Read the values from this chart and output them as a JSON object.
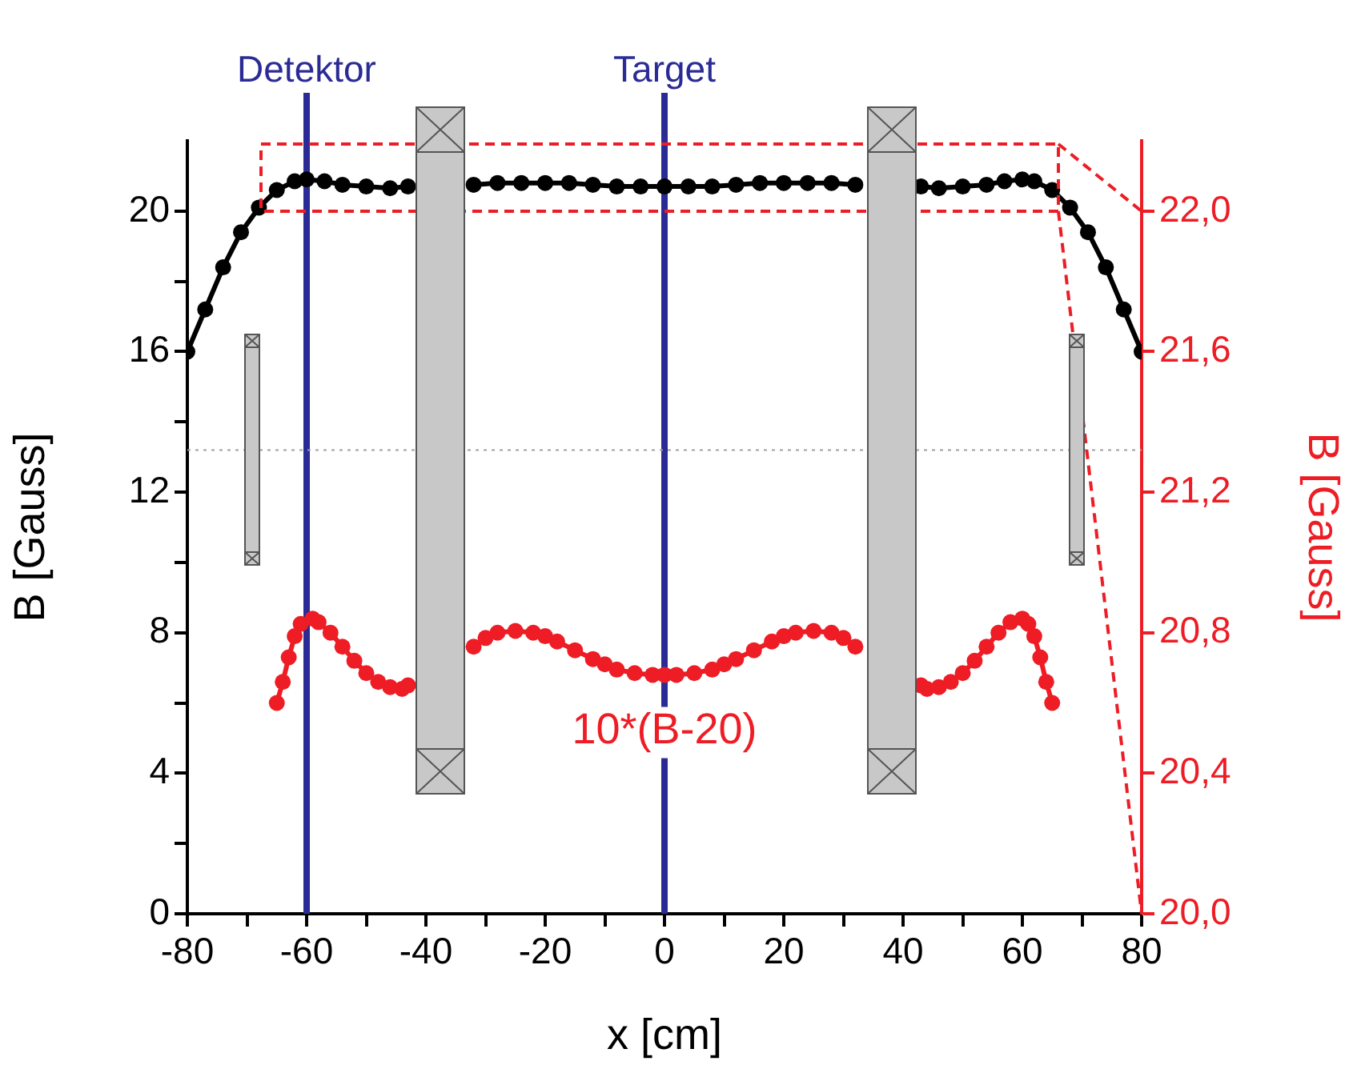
{
  "chart_data": {
    "type": "line",
    "xlabel": "x [cm]",
    "ylabel": "B [Gauss]",
    "y2label": "B [Gauss]",
    "xlim": [
      -80,
      80
    ],
    "xticks": [
      -80,
      {
        "value": -70,
        "label": null
      },
      -60,
      {
        "value": -50,
        "label": null
      },
      -40,
      {
        "value": -30,
        "label": null
      },
      -20,
      {
        "value": -10,
        "label": null
      },
      0,
      {
        "value": 10,
        "label": null
      },
      20,
      {
        "value": 30,
        "label": null
      },
      40,
      {
        "value": 50,
        "label": null
      },
      60,
      {
        "value": 70,
        "label": null
      },
      80
    ],
    "ylim": [
      0,
      22
    ],
    "yticks": [
      0,
      {
        "value": 2,
        "label": null
      },
      4,
      {
        "value": 6,
        "label": null
      },
      8,
      {
        "value": 10,
        "label": null
      },
      12,
      {
        "value": 14,
        "label": null
      },
      16,
      {
        "value": 18,
        "label": null
      },
      20
    ],
    "y2lim": [
      20,
      22.2
    ],
    "y2ticks": [
      {
        "value": 20,
        "label": "20,0"
      },
      {
        "value": 20.4,
        "label": "20,4"
      },
      {
        "value": 20.8,
        "label": "20,8"
      },
      {
        "value": 21.2,
        "label": "21,2"
      },
      {
        "value": 21.6,
        "label": "21,6"
      },
      {
        "value": 22,
        "label": "22,0"
      }
    ],
    "grid": false,
    "legend": false,
    "marker": "circle",
    "line_style": "solid",
    "ref_lines": [
      {
        "axis": "x",
        "value": -60,
        "label": "Detektor",
        "color": "#2b2b96",
        "line_style": "solid"
      },
      {
        "axis": "x",
        "value": 0,
        "label": "Target",
        "color": "#2b2b96",
        "line_style": "solid"
      },
      {
        "axis": "y",
        "value": 13.2,
        "label": null,
        "color": "#a0a0a0",
        "line_style": "dotted"
      }
    ],
    "series": [
      {
        "color": "#000000",
        "x": [
          -80,
          -77,
          -74,
          -71,
          -68,
          -65,
          -62,
          -60,
          -57,
          -54,
          -50,
          -46,
          -43,
          -38,
          -32,
          -28,
          -24,
          -20,
          -16,
          -12,
          -8,
          -4,
          0,
          4,
          8,
          12,
          16,
          20,
          24,
          28,
          32,
          38,
          43,
          46,
          50,
          54,
          57,
          60,
          62,
          65,
          68,
          71,
          74,
          77,
          80
        ],
        "values": [
          16.0,
          17.2,
          18.4,
          19.4,
          20.1,
          20.6,
          20.85,
          20.9,
          20.85,
          20.75,
          20.7,
          20.65,
          20.7,
          null,
          20.75,
          20.8,
          20.8,
          20.8,
          20.8,
          20.75,
          20.7,
          20.7,
          20.7,
          20.7,
          20.7,
          20.75,
          20.8,
          20.8,
          20.8,
          20.8,
          20.75,
          null,
          20.7,
          20.65,
          20.7,
          20.75,
          20.85,
          20.9,
          20.85,
          20.6,
          20.1,
          19.4,
          18.4,
          17.2,
          16.0
        ]
      },
      {
        "name": "10*(B-20)",
        "color": "#ee1c24",
        "x": [
          -65,
          -64,
          -63,
          -62,
          -61,
          -59,
          -58,
          -56,
          -54,
          -52,
          -50,
          -48,
          -46,
          -44,
          -43,
          -38,
          -32,
          -30,
          -28,
          -25,
          -22,
          -20,
          -18,
          -15,
          -12,
          -10,
          -8,
          -5,
          -2,
          0,
          2,
          5,
          8,
          10,
          12,
          15,
          18,
          20,
          22,
          25,
          28,
          30,
          32,
          38,
          43,
          44,
          46,
          48,
          50,
          52,
          54,
          56,
          58,
          60,
          61,
          62,
          63,
          64,
          65
        ],
        "values": [
          6.0,
          6.6,
          7.3,
          7.9,
          8.25,
          8.4,
          8.3,
          8.0,
          7.6,
          7.2,
          6.85,
          6.6,
          6.45,
          6.4,
          6.5,
          null,
          7.6,
          7.85,
          8.0,
          8.05,
          8.0,
          7.9,
          7.75,
          7.5,
          7.25,
          7.1,
          6.95,
          6.85,
          6.8,
          6.8,
          6.8,
          6.85,
          6.95,
          7.1,
          7.25,
          7.5,
          7.75,
          7.9,
          8.0,
          8.05,
          8.0,
          7.85,
          7.6,
          null,
          6.5,
          6.4,
          6.45,
          6.6,
          6.85,
          7.2,
          7.6,
          8.0,
          8.3,
          8.4,
          8.25,
          7.9,
          7.3,
          6.6,
          6.0
        ]
      }
    ]
  }
}
